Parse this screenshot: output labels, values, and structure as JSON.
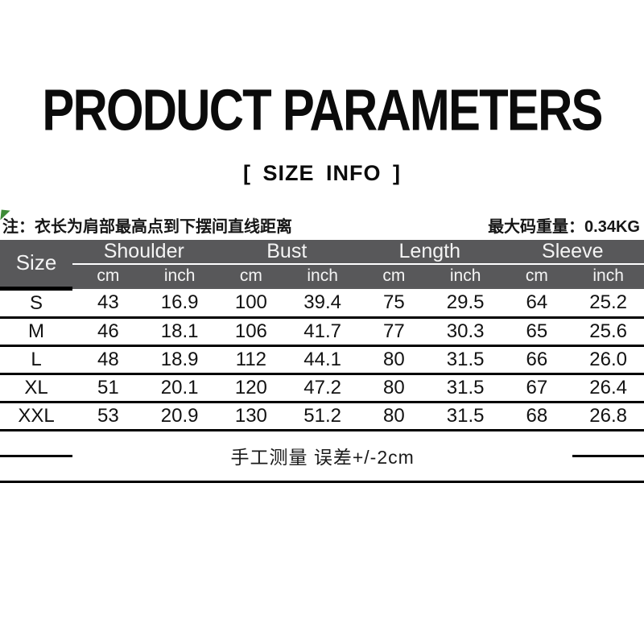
{
  "page": {
    "title": "PRODUCT PARAMETERS",
    "subtitle": "[ SIZE INFO ]",
    "note_left": "注：衣长为肩部最高点到下摆间直线距离",
    "note_right": "最大码重量：0.34KG",
    "footer_note": "手工测量 误差+/-2cm"
  },
  "colors": {
    "header_bg": "#58585A",
    "header_text": "#F4F4F4",
    "grid_line": "#000000",
    "green_mark": "#3D8B37"
  },
  "size_table": {
    "corner_label": "Size",
    "units": [
      "cm",
      "inch"
    ],
    "groups": [
      {
        "label": "Shoulder"
      },
      {
        "label": "Bust"
      },
      {
        "label": "Length"
      },
      {
        "label": "Sleeve"
      }
    ],
    "rows": [
      {
        "size": "S",
        "values": [
          "43",
          "16.9",
          "100",
          "39.4",
          "75",
          "29.5",
          "64",
          "25.2"
        ]
      },
      {
        "size": "M",
        "values": [
          "46",
          "18.1",
          "106",
          "41.7",
          "77",
          "30.3",
          "65",
          "25.6"
        ]
      },
      {
        "size": "L",
        "values": [
          "48",
          "18.9",
          "112",
          "44.1",
          "80",
          "31.5",
          "66",
          "26.0"
        ]
      },
      {
        "size": "XL",
        "values": [
          "51",
          "20.1",
          "120",
          "47.2",
          "80",
          "31.5",
          "67",
          "26.4"
        ]
      },
      {
        "size": "XXL",
        "values": [
          "53",
          "20.9",
          "130",
          "51.2",
          "80",
          "31.5",
          "68",
          "26.8"
        ]
      }
    ]
  }
}
